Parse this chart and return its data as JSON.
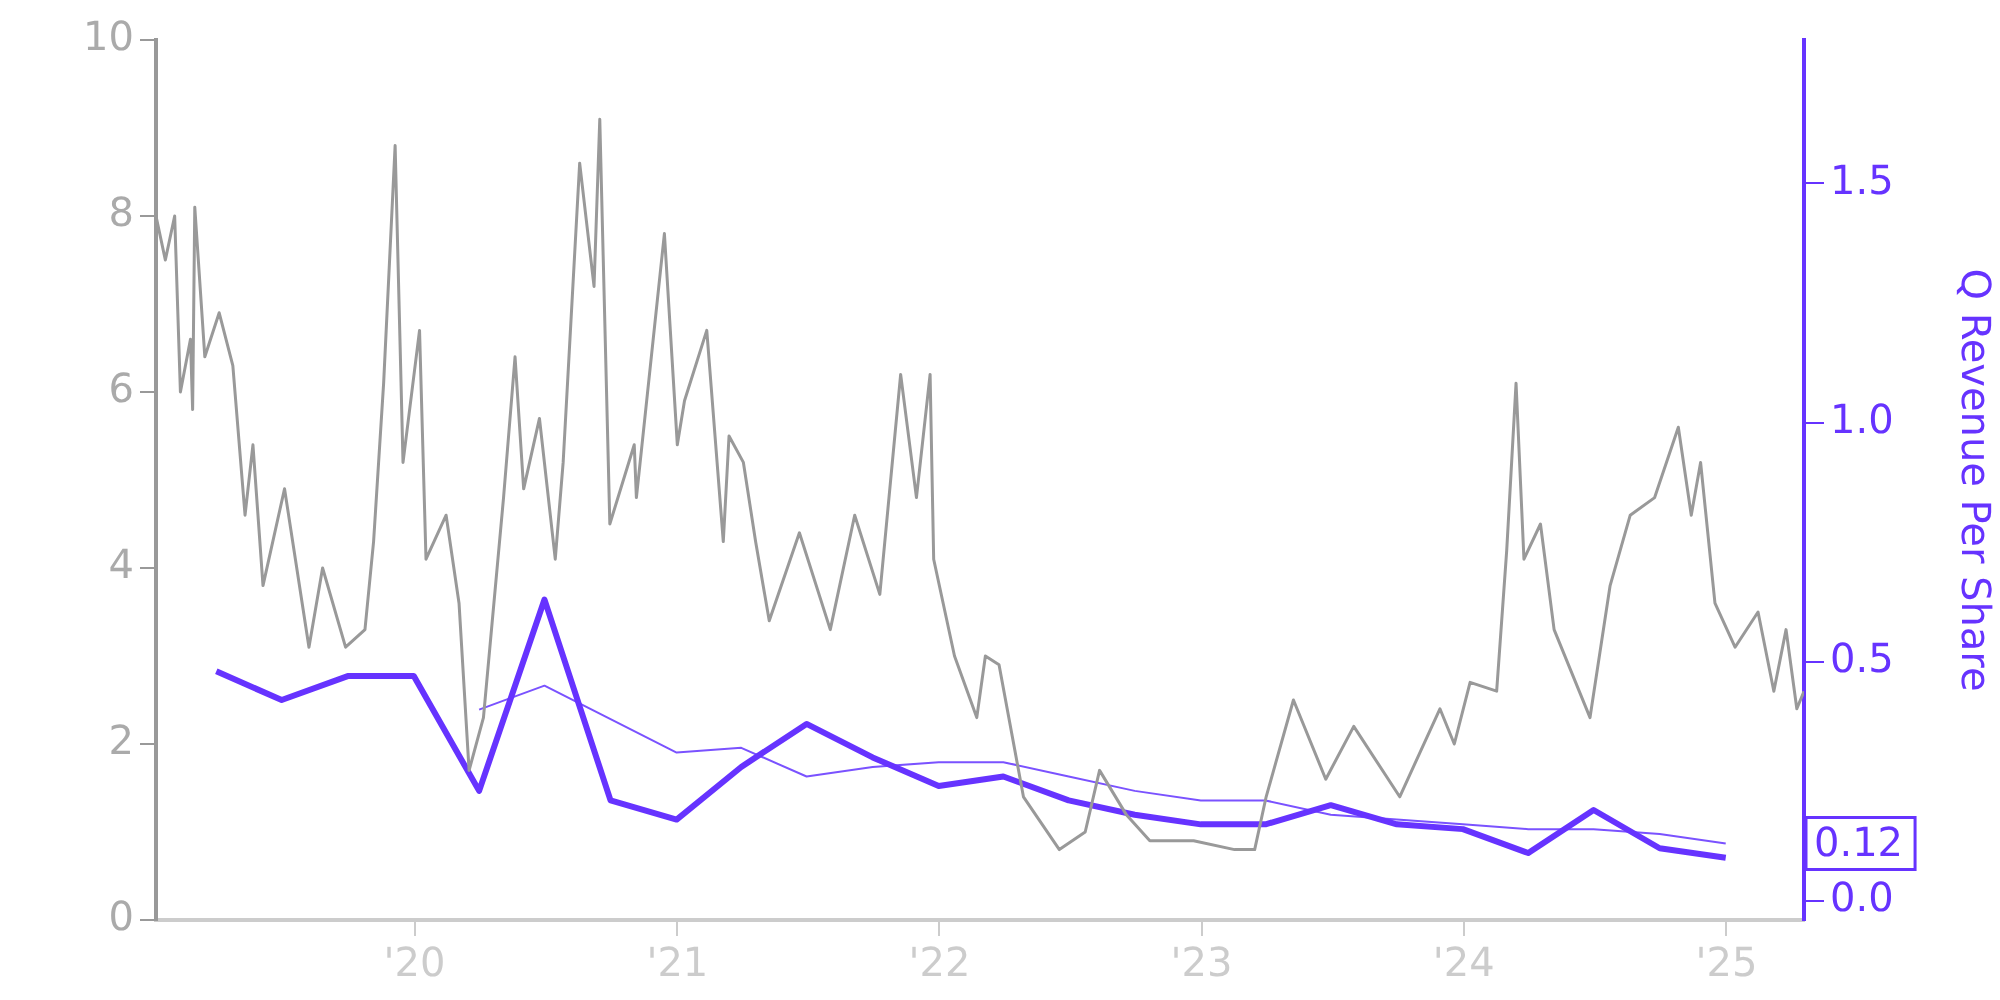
{
  "chart_data": {
    "type": "line",
    "y2label": "Q Revenue Per Share",
    "xlim": [
      "2019-01-06",
      "2025-04-19"
    ],
    "xticks": [
      {
        "value": "2020",
        "label": "'20"
      },
      {
        "value": "2021",
        "label": "'21"
      },
      {
        "value": "2022",
        "label": "'22"
      },
      {
        "value": "2023",
        "label": "'23"
      },
      {
        "value": "2024",
        "label": "'24"
      },
      {
        "value": "2025",
        "label": "'25"
      }
    ],
    "ylim": [
      0,
      10
    ],
    "yticks": [
      0,
      2,
      4,
      6,
      8,
      10
    ],
    "y2lim": [
      -0.04,
      1.8
    ],
    "y2ticks": [
      {
        "value": 0,
        "label": "0.0"
      },
      0.12,
      0.5,
      {
        "value": 1,
        "label": "1.0"
      },
      1.5
    ],
    "grid": false,
    "legend": false,
    "marker": "none",
    "line_style": "solid",
    "series": [
      {
        "color": "#999999",
        "x": [
          "2019-01-06",
          "2019-01-19",
          "2019-02-01",
          "2019-02-09",
          "2019-02-23",
          "2019-02-26",
          "2019-03-01",
          "2019-03-15",
          "2019-04-04",
          "2019-04-23",
          "2019-05-10",
          "2019-05-21",
          "2019-06-04",
          "2019-07-04",
          "2019-08-07",
          "2019-08-26",
          "2019-09-27",
          "2019-10-24",
          "2019-11-05",
          "2019-11-19",
          "2019-12-05",
          "2019-12-16",
          "2020-01-08",
          "2020-01-17",
          "2020-02-14",
          "2020-03-03",
          "2020-03-17",
          "2020-04-06",
          "2020-05-04",
          "2020-05-20",
          "2020-06-01",
          "2020-06-23",
          "2020-07-15",
          "2020-07-26",
          "2020-08-18",
          "2020-09-07",
          "2020-09-15",
          "2020-09-29",
          "2020-11-02",
          "2020-11-05",
          "2020-12-14",
          "2021-01-01",
          "2021-01-11",
          "2021-02-11",
          "2021-03-06",
          "2021-03-14",
          "2021-04-03",
          "2021-04-20",
          "2021-05-09",
          "2021-06-20",
          "2021-08-02",
          "2021-09-05",
          "2021-10-10",
          "2021-11-08",
          "2021-11-30",
          "2021-12-19",
          "2021-12-24",
          "2022-01-22",
          "2022-02-22",
          "2022-03-06",
          "2022-03-25",
          "2022-04-28",
          "2022-06-17",
          "2022-07-23",
          "2022-08-12",
          "2022-09-18",
          "2022-10-21",
          "2022-12-21",
          "2023-02-16",
          "2023-03-16",
          "2023-04-01",
          "2023-05-09",
          "2023-06-23",
          "2023-08-01",
          "2023-10-04",
          "2023-11-29",
          "2023-12-19",
          "2024-01-10",
          "2024-02-16",
          "2024-03-01",
          "2024-03-14",
          "2024-03-25",
          "2024-04-17",
          "2024-05-06",
          "2024-06-25",
          "2024-07-23",
          "2024-08-20",
          "2024-09-23",
          "2024-10-26",
          "2024-11-13",
          "2024-11-26",
          "2024-12-16",
          "2025-01-13",
          "2025-02-14",
          "2025-03-08",
          "2025-03-25",
          "2025-04-09",
          "2025-04-19"
        ],
        "values": [
          8.0,
          7.5,
          8.0,
          6.0,
          6.6,
          5.8,
          8.1,
          6.4,
          6.9,
          6.3,
          4.6,
          5.4,
          3.8,
          4.9,
          3.1,
          4.0,
          3.1,
          3.3,
          4.3,
          6.1,
          8.8,
          5.2,
          6.7,
          4.1,
          4.6,
          3.6,
          1.7,
          2.3,
          4.8,
          6.4,
          4.9,
          5.7,
          4.1,
          5.2,
          8.6,
          7.2,
          9.1,
          4.5,
          5.4,
          4.8,
          7.8,
          5.4,
          5.9,
          6.7,
          4.3,
          5.5,
          5.2,
          4.3,
          3.4,
          4.4,
          3.3,
          4.6,
          3.7,
          6.2,
          4.8,
          6.2,
          4.1,
          3.0,
          2.3,
          3.0,
          2.9,
          1.4,
          0.8,
          1.0,
          1.7,
          1.2,
          0.9,
          0.9,
          0.8,
          0.8,
          1.4,
          2.5,
          1.6,
          2.2,
          1.4,
          2.4,
          2.0,
          2.7,
          2.6,
          4.2,
          6.1,
          4.1,
          4.5,
          3.3,
          2.3,
          3.8,
          4.6,
          4.8,
          5.6,
          4.6,
          5.2,
          3.6,
          3.1,
          3.5,
          2.6,
          3.3,
          2.4,
          2.6
        ]
      },
      {
        "color": "#6633ff",
        "axis": "y2",
        "x": [
          "2019-03-31",
          "2019-06-30",
          "2019-09-30",
          "2019-12-31",
          "2020-03-31",
          "2020-06-30",
          "2020-09-30",
          "2020-12-31",
          "2021-03-31",
          "2021-06-30",
          "2021-09-30",
          "2021-12-31",
          "2022-03-31",
          "2022-06-30",
          "2022-09-30",
          "2022-12-31",
          "2023-03-31",
          "2023-06-30",
          "2023-09-30",
          "2023-12-31",
          "2024-03-31",
          "2024-06-30",
          "2024-09-30",
          "2024-12-31"
        ],
        "values": [
          0.48,
          0.42,
          0.47,
          0.47,
          0.23,
          0.63,
          0.21,
          0.17,
          0.28,
          0.37,
          0.3,
          0.24,
          0.26,
          0.21,
          0.18,
          0.16,
          0.16,
          0.2,
          0.16,
          0.15,
          0.1,
          0.19,
          0.11,
          0.09
        ]
      },
      {
        "color": "#7a52ff",
        "axis": "y2",
        "x": [
          "2020-03-31",
          "2020-06-30",
          "2020-09-30",
          "2020-12-31",
          "2021-03-31",
          "2021-06-30",
          "2021-09-30",
          "2021-12-31",
          "2022-03-31",
          "2022-06-30",
          "2022-09-30",
          "2022-12-31",
          "2023-03-31",
          "2023-06-30",
          "2023-09-30",
          "2023-12-31",
          "2024-03-31",
          "2024-06-30",
          "2024-09-30",
          "2024-12-31"
        ],
        "values": [
          0.4,
          0.45,
          0.38,
          0.31,
          0.32,
          0.26,
          0.28,
          0.29,
          0.29,
          0.26,
          0.23,
          0.21,
          0.21,
          0.18,
          0.17,
          0.16,
          0.15,
          0.15,
          0.14,
          0.12
        ]
      }
    ]
  }
}
